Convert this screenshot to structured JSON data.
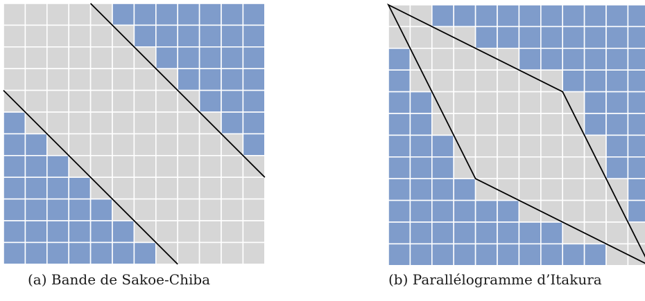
{
  "colors": {
    "inside": "#d6d6d6",
    "outside": "#7f9ccb",
    "gridline": "#ffffff",
    "boundary": "#000000"
  },
  "panels": [
    {
      "id": "sakoe-chiba",
      "caption": "(a) Bande de Sakoe-Chiba",
      "grid_size": 12,
      "colored_cells": [
        [
          0,
          5
        ],
        [
          0,
          6
        ],
        [
          0,
          7
        ],
        [
          0,
          8
        ],
        [
          0,
          9
        ],
        [
          0,
          10
        ],
        [
          0,
          11
        ],
        [
          1,
          6
        ],
        [
          1,
          7
        ],
        [
          1,
          8
        ],
        [
          1,
          9
        ],
        [
          1,
          10
        ],
        [
          1,
          11
        ],
        [
          2,
          7
        ],
        [
          2,
          8
        ],
        [
          2,
          9
        ],
        [
          2,
          10
        ],
        [
          2,
          11
        ],
        [
          3,
          8
        ],
        [
          3,
          9
        ],
        [
          3,
          10
        ],
        [
          3,
          11
        ],
        [
          4,
          9
        ],
        [
          4,
          10
        ],
        [
          4,
          11
        ],
        [
          5,
          10
        ],
        [
          5,
          11
        ],
        [
          6,
          11
        ],
        [
          5,
          0
        ],
        [
          6,
          0
        ],
        [
          6,
          1
        ],
        [
          7,
          0
        ],
        [
          7,
          1
        ],
        [
          7,
          2
        ],
        [
          8,
          0
        ],
        [
          8,
          1
        ],
        [
          8,
          2
        ],
        [
          8,
          3
        ],
        [
          9,
          0
        ],
        [
          9,
          1
        ],
        [
          9,
          2
        ],
        [
          9,
          3
        ],
        [
          9,
          4
        ],
        [
          10,
          0
        ],
        [
          10,
          1
        ],
        [
          10,
          2
        ],
        [
          10,
          3
        ],
        [
          10,
          4
        ],
        [
          10,
          5
        ],
        [
          11,
          0
        ],
        [
          11,
          1
        ],
        [
          11,
          2
        ],
        [
          11,
          3
        ],
        [
          11,
          4
        ],
        [
          11,
          5
        ],
        [
          11,
          6
        ]
      ],
      "boundary_lines": [
        [
          [
            4,
            0
          ],
          [
            12,
            8
          ]
        ],
        [
          [
            0,
            4
          ],
          [
            8,
            12
          ]
        ]
      ]
    },
    {
      "id": "itakura",
      "caption": "(b) Parallélogramme d’Itakura",
      "grid_size": 12,
      "colored_cells": [
        [
          0,
          2
        ],
        [
          0,
          3
        ],
        [
          0,
          4
        ],
        [
          0,
          5
        ],
        [
          0,
          6
        ],
        [
          0,
          7
        ],
        [
          0,
          8
        ],
        [
          0,
          9
        ],
        [
          0,
          10
        ],
        [
          0,
          11
        ],
        [
          1,
          4
        ],
        [
          1,
          5
        ],
        [
          1,
          6
        ],
        [
          1,
          7
        ],
        [
          1,
          8
        ],
        [
          1,
          9
        ],
        [
          1,
          10
        ],
        [
          1,
          11
        ],
        [
          2,
          6
        ],
        [
          2,
          7
        ],
        [
          2,
          8
        ],
        [
          2,
          9
        ],
        [
          2,
          10
        ],
        [
          2,
          11
        ],
        [
          3,
          8
        ],
        [
          3,
          9
        ],
        [
          3,
          10
        ],
        [
          3,
          11
        ],
        [
          4,
          9
        ],
        [
          4,
          10
        ],
        [
          4,
          11
        ],
        [
          5,
          9
        ],
        [
          5,
          10
        ],
        [
          5,
          11
        ],
        [
          6,
          10
        ],
        [
          6,
          11
        ],
        [
          7,
          10
        ],
        [
          7,
          11
        ],
        [
          8,
          11
        ],
        [
          9,
          11
        ],
        [
          2,
          0
        ],
        [
          3,
          0
        ],
        [
          4,
          0
        ],
        [
          4,
          1
        ],
        [
          5,
          0
        ],
        [
          5,
          1
        ],
        [
          6,
          0
        ],
        [
          6,
          1
        ],
        [
          6,
          2
        ],
        [
          7,
          0
        ],
        [
          7,
          1
        ],
        [
          7,
          2
        ],
        [
          8,
          0
        ],
        [
          8,
          1
        ],
        [
          8,
          2
        ],
        [
          8,
          3
        ],
        [
          9,
          0
        ],
        [
          9,
          1
        ],
        [
          9,
          2
        ],
        [
          9,
          3
        ],
        [
          9,
          4
        ],
        [
          9,
          5
        ],
        [
          10,
          0
        ],
        [
          10,
          1
        ],
        [
          10,
          2
        ],
        [
          10,
          3
        ],
        [
          10,
          4
        ],
        [
          10,
          5
        ],
        [
          10,
          6
        ],
        [
          10,
          7
        ],
        [
          11,
          0
        ],
        [
          11,
          1
        ],
        [
          11,
          2
        ],
        [
          11,
          3
        ],
        [
          11,
          4
        ],
        [
          11,
          5
        ],
        [
          11,
          6
        ],
        [
          11,
          7
        ],
        [
          11,
          8
        ],
        [
          11,
          9
        ]
      ],
      "boundary_polygon": [
        [
          0,
          0
        ],
        [
          8,
          4
        ],
        [
          12,
          12
        ],
        [
          4,
          8
        ]
      ]
    }
  ]
}
